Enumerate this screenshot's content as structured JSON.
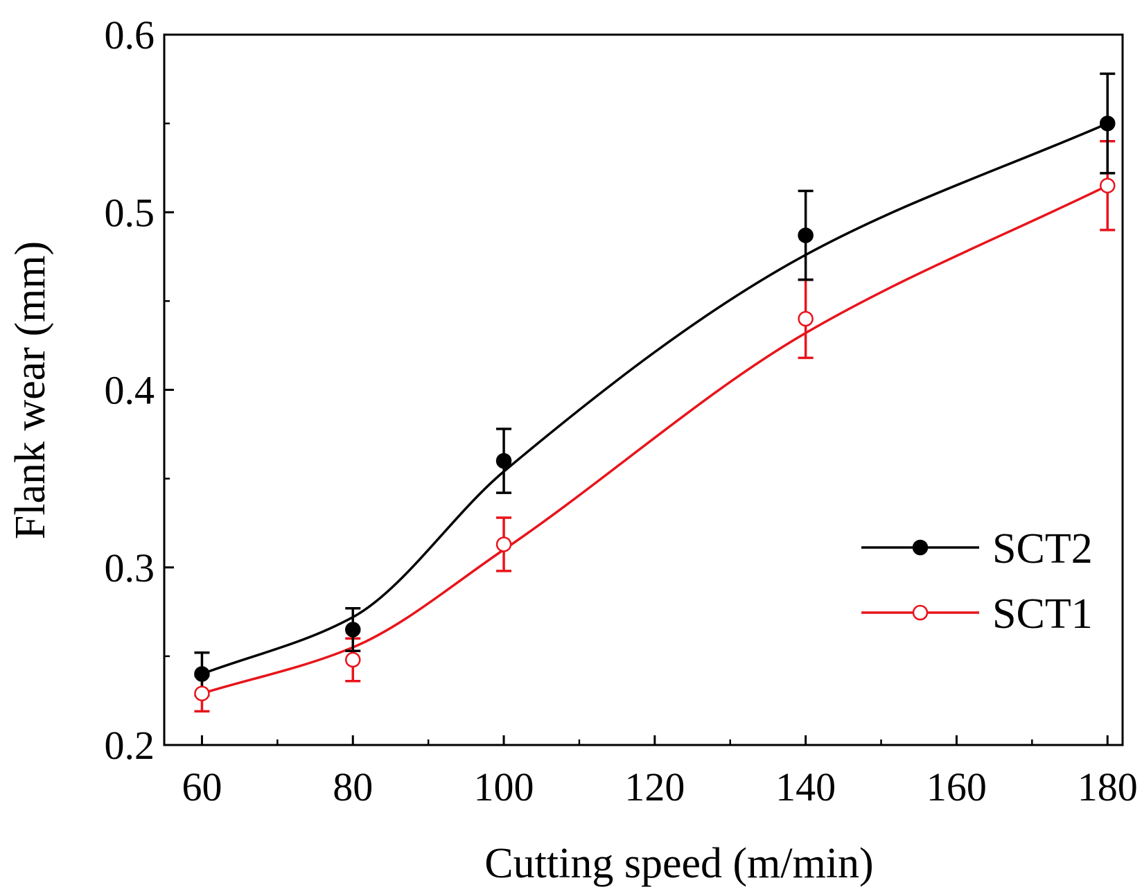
{
  "chart_data": {
    "type": "line",
    "xlabel": "Cutting speed (m/min)",
    "ylabel": "Flank wear (mm)",
    "xlim": [
      55,
      182
    ],
    "ylim": [
      0.2,
      0.6
    ],
    "x_ticks": [
      60,
      80,
      100,
      120,
      140,
      160,
      180
    ],
    "x_tick_labels": [
      "60",
      "80",
      "100",
      "120",
      "140",
      "160",
      "180"
    ],
    "y_ticks": [
      0.2,
      0.3,
      0.4,
      0.5,
      0.6
    ],
    "y_tick_labels": [
      "0.2",
      "0.3",
      "0.4",
      "0.5",
      "0.6"
    ],
    "grid": false,
    "legend_position": "bottom-right",
    "series": [
      {
        "name": "SCT2",
        "color": "#000000",
        "marker": "filled-circle",
        "x": [
          60,
          80,
          100,
          140,
          180
        ],
        "y": [
          0.24,
          0.265,
          0.36,
          0.487,
          0.55
        ],
        "err": [
          0.012,
          0.012,
          0.018,
          0.025,
          0.028
        ],
        "fit_y": [
          0.24,
          0.272,
          0.354,
          0.476,
          0.55
        ]
      },
      {
        "name": "SCT1",
        "color": "#e8141b",
        "marker": "open-circle",
        "x": [
          60,
          80,
          100,
          140,
          180
        ],
        "y": [
          0.229,
          0.248,
          0.313,
          0.44,
          0.515
        ],
        "err": [
          0.01,
          0.012,
          0.015,
          0.022,
          0.025
        ],
        "fit_y": [
          0.229,
          0.255,
          0.31,
          0.432,
          0.515
        ]
      }
    ]
  }
}
